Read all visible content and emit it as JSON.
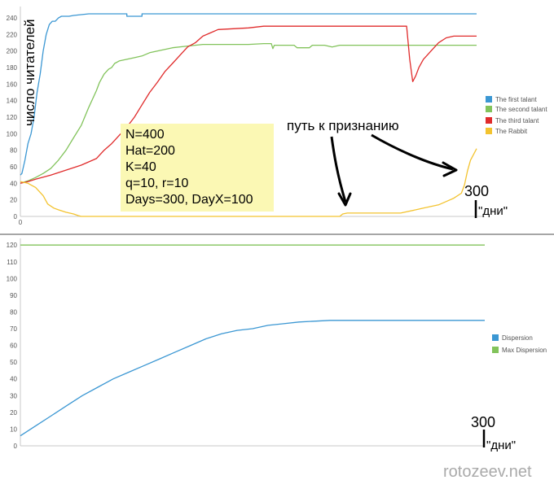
{
  "chart_data": [
    {
      "type": "line",
      "title": "",
      "xlabel": "",
      "ylabel": "",
      "xlim": [
        0,
        300
      ],
      "ylim": [
        0,
        245
      ],
      "y_ticks": [
        0,
        20,
        40,
        60,
        80,
        100,
        120,
        140,
        160,
        180,
        200,
        220,
        240
      ],
      "x_ticks": [
        0
      ],
      "grid": false,
      "legend_position": "right",
      "series": [
        {
          "name": "The first talant",
          "color": "#3b97d3",
          "points": [
            [
              0,
              50
            ],
            [
              1,
              52
            ],
            [
              3,
              68
            ],
            [
              5,
              88
            ],
            [
              7,
              100
            ],
            [
              9,
              120
            ],
            [
              11,
              150
            ],
            [
              13,
              172
            ],
            [
              15,
              200
            ],
            [
              17,
              220
            ],
            [
              19,
              232
            ],
            [
              21,
              236
            ],
            [
              23,
              236
            ],
            [
              25,
              240
            ],
            [
              27,
              242
            ],
            [
              29,
              242
            ],
            [
              32,
              242
            ],
            [
              35,
              243
            ],
            [
              45,
              245
            ],
            [
              70,
              245
            ],
            [
              70,
              242
            ],
            [
              80,
              242
            ],
            [
              80,
              245
            ],
            [
              100,
              245
            ],
            [
              300,
              245
            ]
          ]
        },
        {
          "name": "The second talant",
          "color": "#82c35b",
          "points": [
            [
              0,
              40
            ],
            [
              5,
              43
            ],
            [
              10,
              47
            ],
            [
              15,
              52
            ],
            [
              20,
              58
            ],
            [
              25,
              68
            ],
            [
              30,
              80
            ],
            [
              35,
              95
            ],
            [
              40,
              110
            ],
            [
              45,
              132
            ],
            [
              50,
              152
            ],
            [
              52,
              162
            ],
            [
              55,
              172
            ],
            [
              58,
              178
            ],
            [
              60,
              180
            ],
            [
              62,
              185
            ],
            [
              65,
              188
            ],
            [
              70,
              190
            ],
            [
              75,
              192
            ],
            [
              80,
              194
            ],
            [
              85,
              198
            ],
            [
              90,
              200
            ],
            [
              100,
              204
            ],
            [
              110,
              206
            ],
            [
              120,
              208
            ],
            [
              150,
              208
            ],
            [
              160,
              209
            ],
            [
              165,
              209
            ],
            [
              166,
              203
            ],
            [
              167,
              207
            ],
            [
              180,
              207
            ],
            [
              182,
              204
            ],
            [
              190,
              204
            ],
            [
              192,
              207
            ],
            [
              200,
              207
            ],
            [
              205,
              205
            ],
            [
              210,
              207
            ],
            [
              300,
              207
            ]
          ]
        },
        {
          "name": "The third talant",
          "color": "#e02b2b",
          "points": [
            [
              0,
              40
            ],
            [
              5,
              42
            ],
            [
              10,
              45
            ],
            [
              20,
              50
            ],
            [
              30,
              56
            ],
            [
              40,
              62
            ],
            [
              50,
              70
            ],
            [
              55,
              80
            ],
            [
              60,
              88
            ],
            [
              65,
              98
            ],
            [
              70,
              108
            ],
            [
              75,
              120
            ],
            [
              80,
              135
            ],
            [
              85,
              150
            ],
            [
              90,
              162
            ],
            [
              95,
              175
            ],
            [
              100,
              185
            ],
            [
              105,
              195
            ],
            [
              110,
              205
            ],
            [
              115,
              210
            ],
            [
              120,
              218
            ],
            [
              125,
              222
            ],
            [
              130,
              226
            ],
            [
              150,
              228
            ],
            [
              160,
              230
            ],
            [
              170,
              230
            ],
            [
              200,
              230
            ],
            [
              250,
              230
            ],
            [
              254,
              230
            ],
            [
              256,
              190
            ],
            [
              258,
              163
            ],
            [
              260,
              170
            ],
            [
              262,
              180
            ],
            [
              265,
              190
            ],
            [
              268,
              196
            ],
            [
              270,
              200
            ],
            [
              275,
              210
            ],
            [
              280,
              216
            ],
            [
              285,
              218
            ],
            [
              300,
              218
            ]
          ]
        },
        {
          "name": "The Rabbit",
          "color": "#f3c32f",
          "points": [
            [
              0,
              42
            ],
            [
              5,
              40
            ],
            [
              10,
              35
            ],
            [
              15,
              25
            ],
            [
              18,
              15
            ],
            [
              22,
              10
            ],
            [
              25,
              8
            ],
            [
              30,
              5
            ],
            [
              35,
              3
            ],
            [
              38,
              1
            ],
            [
              40,
              0
            ],
            [
              100,
              0
            ],
            [
              150,
              0
            ],
            [
              210,
              0
            ],
            [
              212,
              3
            ],
            [
              215,
              4
            ],
            [
              250,
              4
            ],
            [
              260,
              8
            ],
            [
              265,
              10
            ],
            [
              270,
              12
            ],
            [
              275,
              14
            ],
            [
              280,
              18
            ],
            [
              285,
              22
            ],
            [
              290,
              28
            ],
            [
              292,
              38
            ],
            [
              294,
              55
            ],
            [
              296,
              68
            ],
            [
              298,
              75
            ],
            [
              300,
              82
            ]
          ]
        }
      ]
    },
    {
      "type": "line",
      "title": "",
      "xlabel": "",
      "ylabel": "",
      "xlim": [
        0,
        300
      ],
      "ylim": [
        0,
        124
      ],
      "y_ticks": [
        0,
        10,
        20,
        30,
        40,
        50,
        60,
        70,
        80,
        90,
        100,
        110,
        120
      ],
      "x_ticks": [
        0
      ],
      "grid": false,
      "legend_position": "right",
      "series": [
        {
          "name": "Dispersion",
          "color": "#3b97d3",
          "points": [
            [
              0,
              6
            ],
            [
              10,
              12
            ],
            [
              20,
              18
            ],
            [
              30,
              24
            ],
            [
              40,
              30
            ],
            [
              50,
              35
            ],
            [
              60,
              40
            ],
            [
              70,
              44
            ],
            [
              80,
              48
            ],
            [
              90,
              52
            ],
            [
              100,
              56
            ],
            [
              110,
              60
            ],
            [
              120,
              64
            ],
            [
              130,
              67
            ],
            [
              140,
              69
            ],
            [
              150,
              70
            ],
            [
              160,
              72
            ],
            [
              170,
              73
            ],
            [
              180,
              74
            ],
            [
              200,
              75
            ],
            [
              220,
              75
            ],
            [
              250,
              75
            ],
            [
              300,
              75
            ]
          ]
        },
        {
          "name": "Max Dispersion",
          "color": "#82c35b",
          "points": [
            [
              0,
              120
            ],
            [
              300,
              120
            ]
          ]
        }
      ]
    }
  ],
  "annotations": {
    "ylabel_handwritten": "число читателей",
    "params_lines": [
      "N=400",
      "Hat=200",
      "K=40",
      "q=10, r=10",
      "Days=300, DayX=100"
    ],
    "path_label": "путь к признанию",
    "chart1_day_number": "300",
    "chart1_day_label": "\"дни\"",
    "chart2_day_number": "300",
    "chart2_day_label": "\"дни\""
  },
  "watermark": "rotozeev.net",
  "colors": {
    "axis": "#c8c8c8",
    "divider": "#888888",
    "params_box": "#fbf8b4",
    "tick_text": "#555555"
  }
}
